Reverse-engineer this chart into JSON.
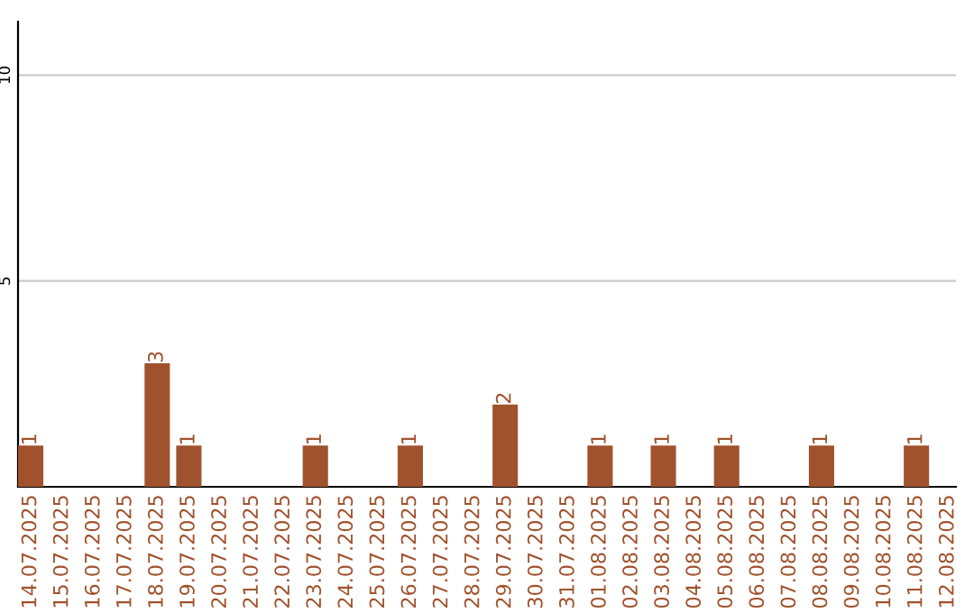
{
  "chart_data": {
    "type": "bar",
    "categories": [
      "14.07.2025",
      "15.07.2025",
      "16.07.2025",
      "17.07.2025",
      "18.07.2025",
      "19.07.2025",
      "20.07.2025",
      "21.07.2025",
      "22.07.2025",
      "23.07.2025",
      "24.07.2025",
      "25.07.2025",
      "26.07.2025",
      "27.07.2025",
      "28.07.2025",
      "29.07.2025",
      "30.07.2025",
      "31.07.2025",
      "01.08.2025",
      "02.08.2025",
      "03.08.2025",
      "04.08.2025",
      "05.08.2025",
      "06.08.2025",
      "07.08.2025",
      "08.08.2025",
      "09.08.2025",
      "10.08.2025",
      "11.08.2025",
      "12.08.2025"
    ],
    "values": [
      1,
      0,
      0,
      0,
      3,
      1,
      0,
      0,
      0,
      1,
      0,
      0,
      1,
      0,
      0,
      2,
      0,
      0,
      1,
      0,
      1,
      0,
      1,
      0,
      0,
      1,
      0,
      0,
      1,
      0
    ],
    "value_labels": [
      "1",
      null,
      null,
      null,
      "3",
      "1",
      null,
      null,
      null,
      "1",
      null,
      null,
      "1",
      null,
      null,
      "2",
      null,
      null,
      "1",
      null,
      "1",
      null,
      "1",
      null,
      null,
      "1",
      null,
      null,
      "1",
      null
    ],
    "color": "#a0522d",
    "ylim": [
      0,
      11.3
    ],
    "yticks": [
      5,
      10
    ],
    "grid": "y"
  }
}
